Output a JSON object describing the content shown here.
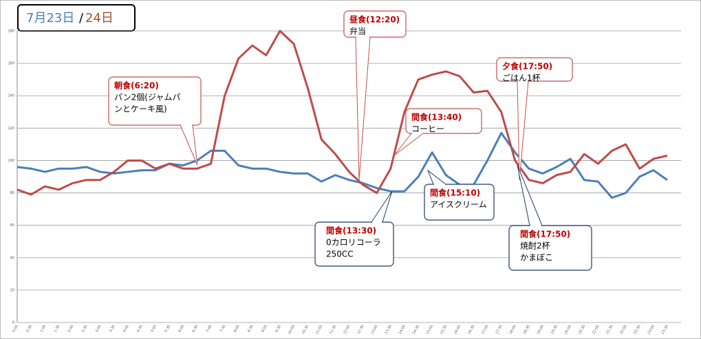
{
  "chart_data": {
    "type": "line",
    "separator": "/",
    "categories": [
      "0:00",
      "0:30",
      "1:00",
      "1:30",
      "2:00",
      "2:30",
      "3:00",
      "3:30",
      "4:00",
      "4:30",
      "5:00",
      "5:30",
      "6:00",
      "6:30",
      "7:00",
      "7:30",
      "8:00",
      "8:30",
      "9:00",
      "9:30",
      "10:00",
      "10:30",
      "11:00",
      "11:30",
      "12:00",
      "12:30",
      "13:00",
      "13:30",
      "14:00",
      "14:30",
      "15:00",
      "15:30",
      "16:00",
      "16:30",
      "17:00",
      "17:30",
      "18:00",
      "18:30",
      "19:00",
      "19:30",
      "20:00",
      "20:30",
      "21:00",
      "21:30",
      "22:00",
      "22:30",
      "23:00",
      "23:30"
    ],
    "series": [
      {
        "name": "7月23日",
        "color": "#4a7ebb",
        "values": [
          96,
          95,
          93,
          95,
          95,
          96,
          93,
          92,
          93,
          94,
          94,
          98,
          97,
          100,
          106,
          106,
          97,
          95,
          95,
          93,
          92,
          92,
          87,
          91,
          88,
          86,
          83,
          81,
          81,
          90,
          105,
          91,
          85,
          85,
          100,
          117,
          105,
          95,
          92,
          96,
          101,
          88,
          87,
          77,
          80,
          90,
          94,
          88
        ]
      },
      {
        "name": "24日",
        "color": "#be4b48",
        "values": [
          82,
          79,
          84,
          82,
          86,
          88,
          88,
          93,
          100,
          100,
          95,
          98,
          95,
          95,
          98,
          140,
          163,
          171,
          165,
          180,
          172,
          145,
          113,
          104,
          93,
          85,
          80,
          95,
          130,
          150,
          153,
          155,
          152,
          142,
          143,
          130,
          100,
          88,
          86,
          91,
          93,
          104,
          98,
          106,
          110,
          95,
          101,
          103
        ]
      }
    ],
    "ylim": [
      0,
      180
    ],
    "yticks": [
      0,
      20,
      40,
      60,
      80,
      100,
      120,
      140,
      160,
      180
    ],
    "grid": true,
    "annotations": [
      {
        "title": "朝食(6:20)",
        "lines": [
          "パン2個(ジャムパ",
          "ンとケーキ風)"
        ]
      },
      {
        "title": "昼食(12:20)",
        "lines": [
          "弁当"
        ]
      },
      {
        "title": "間食(13:40)",
        "lines": [
          "コーヒー"
        ]
      },
      {
        "title": "夕食(17:50)",
        "lines": [
          "ごはん1杯"
        ]
      },
      {
        "title": "間食(13:30)",
        "lines": [
          "0カロリコーラ",
          "250CC"
        ]
      },
      {
        "title": "間食(15:10)",
        "lines": [
          "アイスクリーム"
        ]
      },
      {
        "title": "間食(17:50)",
        "lines": [
          "焼酎2杯",
          "かまぼこ"
        ]
      }
    ]
  }
}
